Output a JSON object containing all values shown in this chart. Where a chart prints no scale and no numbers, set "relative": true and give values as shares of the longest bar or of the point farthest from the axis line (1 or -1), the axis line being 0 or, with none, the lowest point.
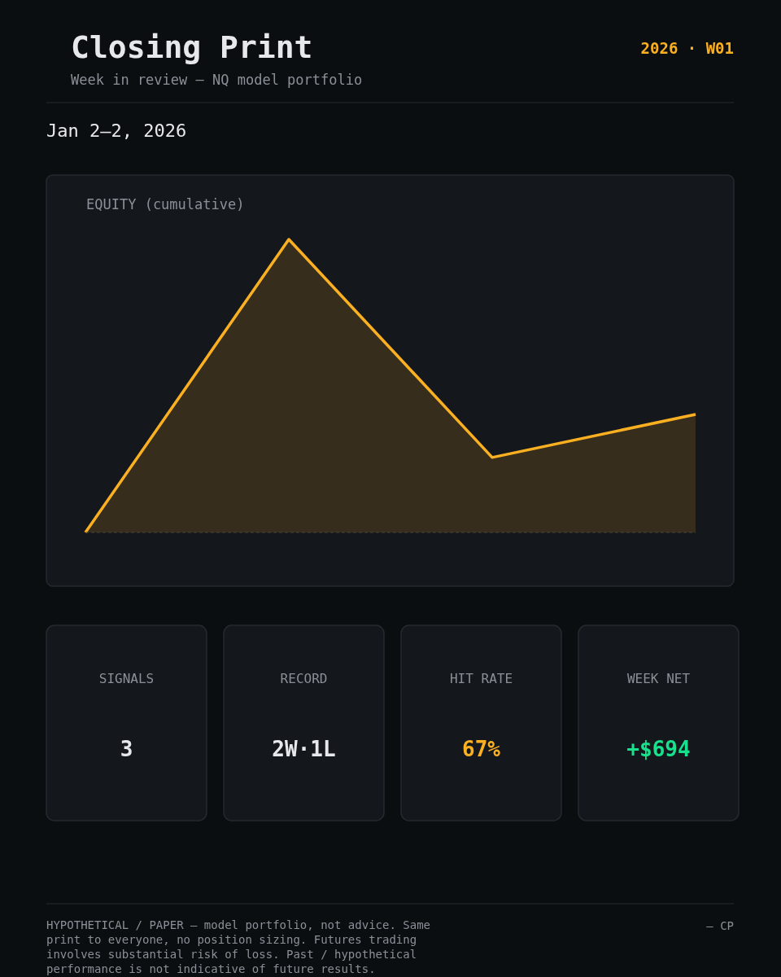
{
  "chart_data": [
    {
      "type": "area",
      "title": "Closing Print",
      "subtitle": "Week in review — NQ model portfolio",
      "relative": true,
      "categories": [
        null,
        null,
        null,
        null
      ],
      "series": [
        {
          "color": "#fbb022",
          "values": [
            0,
            1,
            0.256,
            0.403
          ]
        }
      ],
      "ref_lines": [
        {
          "axis": "y",
          "value": 0,
          "line_style": "dashed",
          "color": "#4a4536"
        }
      ],
      "annotations": [
        "2026 · W01",
        "Jan 2–2, 2026",
        "EQUITY (cumulative)",
        "HYPOTHETICAL / PAPER — model portfolio, not advice. Same print to everyone, no position sizing. Futures trading involves substantial risk of loss. Past / hypothetical performance is not indicative of future results.",
        "— CP"
      ]
    },
    {
      "type": "other",
      "categories": [
        "SIGNALS",
        "RECORD",
        "HIT RATE",
        "WEEK NET"
      ],
      "value_labels": [
        "3",
        "2W·1L",
        "67%",
        "+$694"
      ]
    }
  ]
}
